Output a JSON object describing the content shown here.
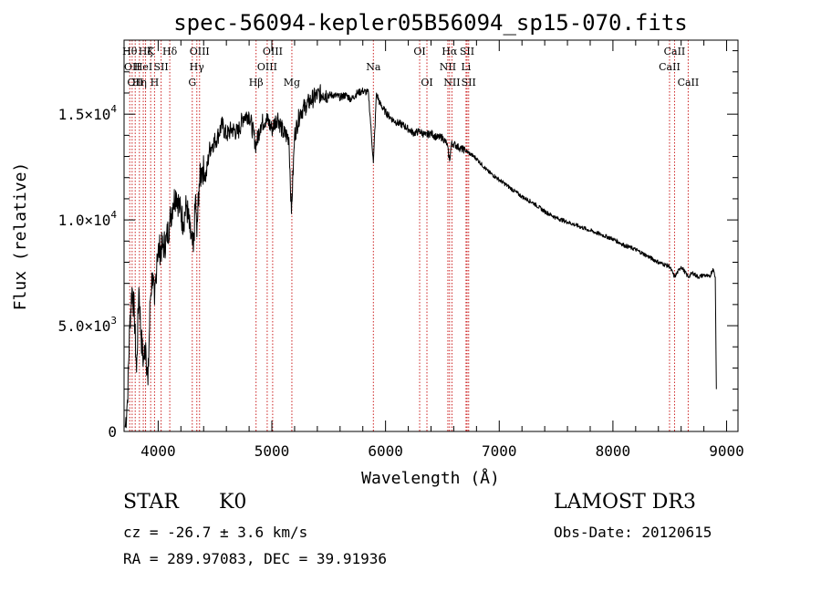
{
  "chart_data": {
    "type": "line",
    "title": "spec-56094-kepler05B56094_sp15-070.fits",
    "xlabel": "Wavelength (Å)",
    "ylabel": "Flux (relative)",
    "xlim": [
      3700,
      9100
    ],
    "ylim": [
      0,
      18500
    ],
    "x_ticks": [
      4000,
      5000,
      6000,
      7000,
      8000,
      9000
    ],
    "x_tick_labels": [
      "4000",
      "5000",
      "6000",
      "7000",
      "8000",
      "9000"
    ],
    "y_ticks": [
      0,
      5000,
      10000,
      15000
    ],
    "y_tick_labels": [
      {
        "mant": "0",
        "exp": ""
      },
      {
        "mant": "5.0×10",
        "exp": "3"
      },
      {
        "mant": "1.0×10",
        "exp": "4"
      },
      {
        "mant": "1.5×10",
        "exp": "4"
      }
    ],
    "series": [
      {
        "name": "flux",
        "x": [
          3710,
          3730,
          3750,
          3770,
          3790,
          3810,
          3830,
          3850,
          3870,
          3890,
          3910,
          3930,
          3950,
          3968,
          3990,
          4010,
          4040,
          4070,
          4102,
          4130,
          4160,
          4190,
          4220,
          4250,
          4280,
          4310,
          4330,
          4340,
          4360,
          4390,
          4420,
          4450,
          4480,
          4520,
          4560,
          4600,
          4650,
          4700,
          4750,
          4800,
          4861,
          4900,
          4950,
          5000,
          5050,
          5100,
          5150,
          5172,
          5200,
          5250,
          5300,
          5350,
          5400,
          5450,
          5500,
          5550,
          5600,
          5650,
          5700,
          5750,
          5800,
          5850,
          5893,
          5920,
          5950,
          6000,
          6050,
          6100,
          6150,
          6200,
          6250,
          6300,
          6350,
          6400,
          6450,
          6500,
          6540,
          6563,
          6580,
          6600,
          6650,
          6700,
          6750,
          6800,
          6900,
          7000,
          7100,
          7200,
          7300,
          7400,
          7500,
          7600,
          7700,
          7800,
          7900,
          8000,
          8100,
          8200,
          8300,
          8400,
          8498,
          8542,
          8600,
          8662,
          8700,
          8750,
          8800,
          8850,
          8880,
          8900,
          8910
        ],
        "y": [
          200,
          1500,
          5000,
          6800,
          5600,
          2800,
          6800,
          4500,
          3300,
          4200,
          2200,
          6200,
          7500,
          6000,
          8400,
          8600,
          8700,
          9000,
          9900,
          10800,
          11300,
          10500,
          9900,
          10700,
          9400,
          8500,
          11200,
          9200,
          11700,
          12500,
          12000,
          13300,
          13600,
          13900,
          14500,
          14000,
          14300,
          14100,
          14900,
          15000,
          13500,
          14500,
          14800,
          14300,
          14900,
          14100,
          13900,
          10300,
          14000,
          15100,
          15400,
          15700,
          15900,
          16000,
          15900,
          15900,
          15800,
          15900,
          15700,
          16000,
          16100,
          16000,
          12700,
          16000,
          15500,
          15100,
          14800,
          14600,
          14500,
          14300,
          14100,
          14200,
          14000,
          14100,
          13900,
          13900,
          13600,
          12800,
          13600,
          13600,
          13400,
          13300,
          13100,
          12900,
          12300,
          11900,
          11500,
          11100,
          10800,
          10400,
          10100,
          9900,
          9700,
          9500,
          9300,
          9100,
          8800,
          8600,
          8300,
          8000,
          7800,
          7300,
          7800,
          7300,
          7500,
          7300,
          7400,
          7300,
          7700,
          7300,
          2000
        ]
      }
    ],
    "lines": [
      {
        "wl": 3750,
        "label": "Hθ",
        "row": 0
      },
      {
        "wl": 3771,
        "label": "OII",
        "row": 1
      },
      {
        "wl": 3798,
        "label": "OII",
        "row": 2
      },
      {
        "wl": 3835,
        "label": "Hη",
        "row": 2
      },
      {
        "wl": 3869,
        "label": "HeI",
        "row": 1
      },
      {
        "wl": 3889,
        "label": "Hζ",
        "row": 0
      },
      {
        "wl": 3934,
        "label": "K",
        "row": 0
      },
      {
        "wl": 3968,
        "label": "H",
        "row": 2
      },
      {
        "wl": 4026,
        "label": "SII",
        "row": 1
      },
      {
        "wl": 4102,
        "label": "Hδ",
        "row": 0
      },
      {
        "wl": 4300,
        "label": "G",
        "row": 2
      },
      {
        "wl": 4340,
        "label": "Hγ",
        "row": 1
      },
      {
        "wl": 4364,
        "label": "OIII",
        "row": 0
      },
      {
        "wl": 4861,
        "label": "Hβ",
        "row": 2
      },
      {
        "wl": 4959,
        "label": "OIII",
        "row": 1
      },
      {
        "wl": 5007,
        "label": "OIII",
        "row": 0
      },
      {
        "wl": 5176,
        "label": "Mg",
        "row": 2
      },
      {
        "wl": 5893,
        "label": "Na",
        "row": 1
      },
      {
        "wl": 6300,
        "label": "OI",
        "row": 0
      },
      {
        "wl": 6364,
        "label": "OI",
        "row": 2
      },
      {
        "wl": 6548,
        "label": "NII",
        "row": 1
      },
      {
        "wl": 6563,
        "label": "Hα",
        "row": 0
      },
      {
        "wl": 6584,
        "label": "NII",
        "row": 2
      },
      {
        "wl": 6708,
        "label": "Li",
        "row": 1
      },
      {
        "wl": 6717,
        "label": "SII",
        "row": 0
      },
      {
        "wl": 6731,
        "label": "SII",
        "row": 2
      },
      {
        "wl": 8498,
        "label": "CaII",
        "row": 1
      },
      {
        "wl": 8542,
        "label": "CaII",
        "row": 0
      },
      {
        "wl": 8662,
        "label": "CaII",
        "row": 2
      }
    ],
    "colors": {
      "spectrum": "#000000",
      "lines": "#cc2222",
      "axes": "#000000"
    }
  },
  "info": {
    "object_class": "STAR",
    "subclass": "K0",
    "survey": "LAMOST DR3",
    "cz": "cz = -26.7 ± 3.6 km/s",
    "obs_date": "Obs-Date: 20120615",
    "coords": "RA = 289.97083, DEC =  39.91936"
  }
}
